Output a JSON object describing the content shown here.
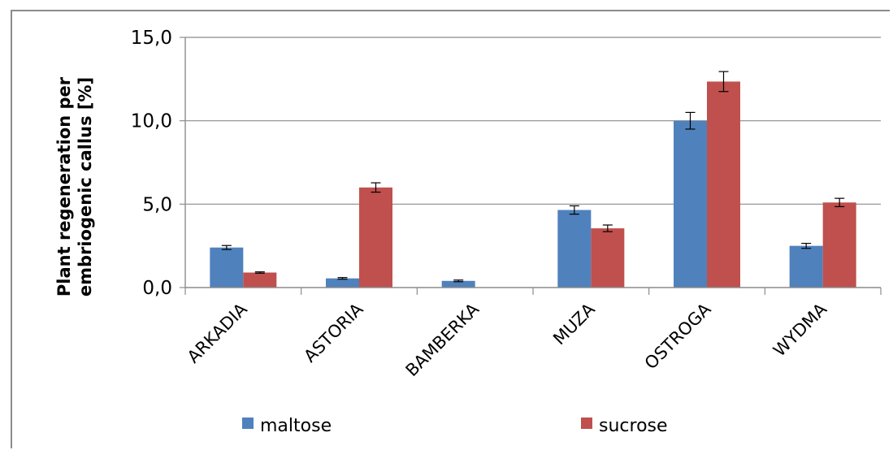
{
  "chart_data": {
    "type": "bar",
    "title": "",
    "xlabel": "",
    "ylabel_lines": [
      "Plant regeneration per",
      "embriogenic callus [%]"
    ],
    "ylim": [
      0,
      15
    ],
    "yticks": [
      0,
      5,
      10,
      15
    ],
    "ytick_labels": [
      "0,0",
      "5,0",
      "10,0",
      "15,0"
    ],
    "grid": true,
    "legend_position": "bottom",
    "categories": [
      "ARKADIA",
      "ASTORIA",
      "BAMBERKA",
      "MUZA",
      "OSTROGA",
      "WYDMA"
    ],
    "series": [
      {
        "name": "maltose",
        "color": "#4f81bd",
        "values": [
          2.4,
          0.55,
          0.4,
          4.65,
          10.0,
          2.5
        ],
        "errors": [
          0.12,
          0.05,
          0.05,
          0.25,
          0.5,
          0.15
        ]
      },
      {
        "name": "sucrose",
        "color": "#c0504d",
        "values": [
          0.9,
          6.0,
          0,
          3.55,
          12.35,
          5.1
        ],
        "errors": [
          0.04,
          0.28,
          0,
          0.2,
          0.6,
          0.25
        ]
      }
    ]
  }
}
